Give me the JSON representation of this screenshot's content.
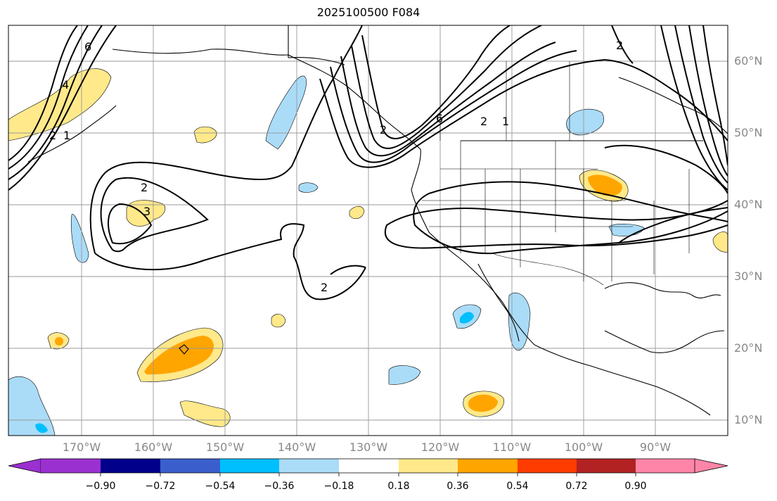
{
  "title": "2025100500 F084",
  "lat_labels": [
    "60°N",
    "50°N",
    "40°N",
    "30°N",
    "20°N",
    "10°N"
  ],
  "lon_labels": [
    "170°W",
    "160°W",
    "150°W",
    "140°W",
    "130°W",
    "120°W",
    "110°W",
    "100°W",
    "90°W"
  ],
  "colorbar": {
    "ticks": [
      "−0.90",
      "−0.72",
      "−0.54",
      "−0.36",
      "−0.18",
      "0.18",
      "0.36",
      "0.54",
      "0.72",
      "0.90"
    ],
    "colors": [
      "#9b30d0",
      "#00008b",
      "#3a5fcd",
      "#00bfff",
      "#aadcf8",
      "#ffffff",
      "#ffe98a",
      "#ffa500",
      "#ff3c00",
      "#b22222",
      "#ff85a8"
    ]
  },
  "contour_labels": [
    "6",
    "4",
    "2",
    "1",
    "2",
    "3",
    "2",
    "2",
    "6",
    "2",
    "1",
    "2"
  ],
  "colors": {
    "gridline": "#999999",
    "coast": "#000000"
  }
}
